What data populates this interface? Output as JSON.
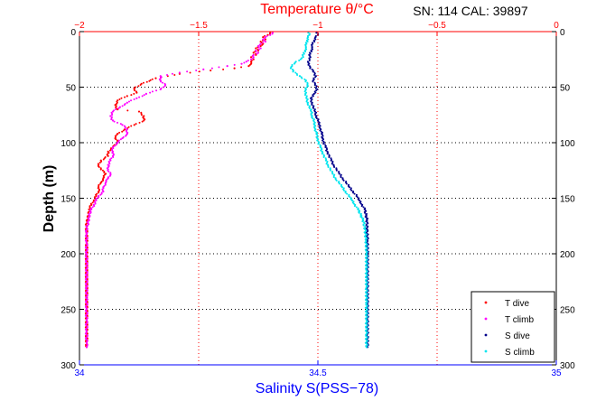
{
  "chart_data": {
    "type": "scatter",
    "title": "SN: 114  CAL: 39897",
    "top_axis": {
      "label": "Temperature θ/°C",
      "range": [
        -2,
        0
      ],
      "ticks": [
        -2,
        -1.5,
        -1,
        -0.5,
        0
      ],
      "tick_labels": [
        "−2",
        "−1.5",
        "−1",
        "−0.5",
        "0"
      ],
      "color": "#ff0000"
    },
    "bottom_axis": {
      "label": "Salinity S(PSS−78)",
      "range": [
        34,
        35
      ],
      "ticks": [
        34,
        34.5,
        35
      ],
      "tick_labels": [
        "34",
        "34.5",
        "35"
      ],
      "color": "#0000ff"
    },
    "y_axis": {
      "label": "Depth (m)",
      "range": [
        0,
        300
      ],
      "reversed": true,
      "ticks": [
        0,
        50,
        100,
        150,
        200,
        250,
        300
      ],
      "tick_labels": [
        "0",
        "50",
        "100",
        "150",
        "200",
        "250",
        "300"
      ]
    },
    "grid": {
      "vertical_on_top_axis_ticks": true,
      "horizontal": true,
      "style": "dotted"
    },
    "legend": {
      "placement": "bottom-right"
    },
    "series": [
      {
        "name": "T dive",
        "axis": "temperature",
        "color": "#ff0000",
        "marker": ".",
        "points": [
          [
            -1.2,
            1
          ],
          [
            -1.21,
            3
          ],
          [
            -1.23,
            5
          ],
          [
            -1.22,
            7
          ],
          [
            -1.24,
            9
          ],
          [
            -1.23,
            11
          ],
          [
            -1.24,
            13
          ],
          [
            -1.26,
            15
          ],
          [
            -1.25,
            17
          ],
          [
            -1.27,
            19
          ],
          [
            -1.26,
            21
          ],
          [
            -1.28,
            23
          ],
          [
            -1.27,
            25
          ],
          [
            -1.28,
            27
          ],
          [
            -1.28,
            29
          ],
          [
            -1.29,
            31
          ],
          [
            -1.35,
            33
          ],
          [
            -1.45,
            35
          ],
          [
            -1.58,
            38
          ],
          [
            -1.68,
            42
          ],
          [
            -1.74,
            47
          ],
          [
            -1.77,
            51
          ],
          [
            -1.76,
            55
          ],
          [
            -1.8,
            58
          ],
          [
            -1.84,
            62
          ],
          [
            -1.85,
            66
          ],
          [
            -1.84,
            70
          ],
          [
            -1.75,
            72
          ],
          [
            -1.73,
            76
          ],
          [
            -1.73,
            80
          ],
          [
            -1.77,
            84
          ],
          [
            -1.81,
            88
          ],
          [
            -1.84,
            92
          ],
          [
            -1.85,
            96
          ],
          [
            -1.84,
            100
          ],
          [
            -1.86,
            104
          ],
          [
            -1.88,
            108
          ],
          [
            -1.88,
            112
          ],
          [
            -1.91,
            116
          ],
          [
            -1.92,
            120
          ],
          [
            -1.91,
            124
          ],
          [
            -1.89,
            128
          ],
          [
            -1.9,
            132
          ],
          [
            -1.91,
            136
          ],
          [
            -1.92,
            140
          ],
          [
            -1.92,
            144
          ],
          [
            -1.93,
            148
          ],
          [
            -1.94,
            152
          ],
          [
            -1.95,
            156
          ],
          [
            -1.96,
            160
          ],
          [
            -1.96,
            165
          ],
          [
            -1.97,
            170
          ],
          [
            -1.97,
            176
          ],
          [
            -1.97,
            182
          ],
          [
            -1.97,
            190
          ],
          [
            -1.97,
            200
          ],
          [
            -1.97,
            210
          ],
          [
            -1.97,
            220
          ],
          [
            -1.97,
            230
          ],
          [
            -1.97,
            240
          ],
          [
            -1.97,
            250
          ],
          [
            -1.97,
            260
          ],
          [
            -1.97,
            270
          ],
          [
            -1.97,
            280
          ],
          [
            -1.97,
            284
          ]
        ]
      },
      {
        "name": "T climb",
        "axis": "temperature",
        "color": "#ff00ff",
        "marker": ".",
        "points": [
          [
            -1.19,
            1
          ],
          [
            -1.2,
            3
          ],
          [
            -1.22,
            5
          ],
          [
            -1.23,
            7
          ],
          [
            -1.22,
            9
          ],
          [
            -1.24,
            11
          ],
          [
            -1.25,
            13
          ],
          [
            -1.24,
            15
          ],
          [
            -1.26,
            17
          ],
          [
            -1.25,
            19
          ],
          [
            -1.27,
            21
          ],
          [
            -1.27,
            23
          ],
          [
            -1.28,
            25
          ],
          [
            -1.3,
            27
          ],
          [
            -1.32,
            29
          ],
          [
            -1.38,
            31
          ],
          [
            -1.48,
            34
          ],
          [
            -1.58,
            37
          ],
          [
            -1.66,
            40
          ],
          [
            -1.66,
            44
          ],
          [
            -1.64,
            48
          ],
          [
            -1.66,
            52
          ],
          [
            -1.72,
            56
          ],
          [
            -1.76,
            60
          ],
          [
            -1.8,
            64
          ],
          [
            -1.83,
            68
          ],
          [
            -1.86,
            72
          ],
          [
            -1.87,
            76
          ],
          [
            -1.86,
            80
          ],
          [
            -1.82,
            84
          ],
          [
            -1.8,
            88
          ],
          [
            -1.8,
            92
          ],
          [
            -1.82,
            96
          ],
          [
            -1.84,
            100
          ],
          [
            -1.86,
            104
          ],
          [
            -1.86,
            108
          ],
          [
            -1.86,
            112
          ],
          [
            -1.87,
            116
          ],
          [
            -1.88,
            120
          ],
          [
            -1.88,
            124
          ],
          [
            -1.87,
            128
          ],
          [
            -1.88,
            132
          ],
          [
            -1.89,
            136
          ],
          [
            -1.9,
            140
          ],
          [
            -1.9,
            144
          ],
          [
            -1.92,
            148
          ],
          [
            -1.93,
            152
          ],
          [
            -1.94,
            156
          ],
          [
            -1.95,
            160
          ],
          [
            -1.96,
            165
          ],
          [
            -1.96,
            170
          ],
          [
            -1.97,
            176
          ],
          [
            -1.97,
            182
          ],
          [
            -1.97,
            190
          ],
          [
            -1.97,
            200
          ],
          [
            -1.97,
            210
          ],
          [
            -1.97,
            220
          ],
          [
            -1.97,
            230
          ],
          [
            -1.97,
            240
          ],
          [
            -1.97,
            250
          ],
          [
            -1.97,
            260
          ],
          [
            -1.97,
            270
          ],
          [
            -1.97,
            280
          ],
          [
            -1.97,
            284
          ]
        ]
      },
      {
        "name": "S dive",
        "axis": "salinity",
        "color": "#00008b",
        "marker": ".",
        "points": [
          [
            34.497,
            1
          ],
          [
            34.5,
            3
          ],
          [
            34.495,
            5
          ],
          [
            34.492,
            8
          ],
          [
            34.489,
            11
          ],
          [
            34.488,
            14
          ],
          [
            34.486,
            17
          ],
          [
            34.484,
            20
          ],
          [
            34.482,
            24
          ],
          [
            34.48,
            28
          ],
          [
            34.484,
            32
          ],
          [
            34.49,
            36
          ],
          [
            34.496,
            40
          ],
          [
            34.49,
            44
          ],
          [
            34.494,
            48
          ],
          [
            34.499,
            52
          ],
          [
            34.492,
            56
          ],
          [
            34.485,
            60
          ],
          [
            34.488,
            64
          ],
          [
            34.49,
            68
          ],
          [
            34.494,
            72
          ],
          [
            34.497,
            76
          ],
          [
            34.5,
            80
          ],
          [
            34.503,
            84
          ],
          [
            34.506,
            88
          ],
          [
            34.508,
            92
          ],
          [
            34.51,
            96
          ],
          [
            34.513,
            100
          ],
          [
            34.516,
            104
          ],
          [
            34.52,
            108
          ],
          [
            34.524,
            112
          ],
          [
            34.528,
            116
          ],
          [
            34.533,
            120
          ],
          [
            34.539,
            124
          ],
          [
            34.545,
            128
          ],
          [
            34.552,
            132
          ],
          [
            34.559,
            136
          ],
          [
            34.566,
            140
          ],
          [
            34.574,
            144
          ],
          [
            34.581,
            148
          ],
          [
            34.587,
            152
          ],
          [
            34.593,
            156
          ],
          [
            34.598,
            160
          ],
          [
            34.601,
            165
          ],
          [
            34.603,
            170
          ],
          [
            34.603,
            178
          ],
          [
            34.604,
            188
          ],
          [
            34.604,
            200
          ],
          [
            34.604,
            215
          ],
          [
            34.604,
            230
          ],
          [
            34.604,
            245
          ],
          [
            34.604,
            260
          ],
          [
            34.604,
            272
          ],
          [
            34.604,
            284
          ]
        ]
      },
      {
        "name": "S climb",
        "axis": "salinity",
        "color": "#00e5ee",
        "marker": ".",
        "points": [
          [
            34.48,
            1
          ],
          [
            34.482,
            3
          ],
          [
            34.479,
            5
          ],
          [
            34.477,
            8
          ],
          [
            34.476,
            11
          ],
          [
            34.475,
            14
          ],
          [
            34.473,
            17
          ],
          [
            34.471,
            20
          ],
          [
            34.466,
            24
          ],
          [
            34.452,
            28
          ],
          [
            34.444,
            32
          ],
          [
            34.448,
            36
          ],
          [
            34.462,
            40
          ],
          [
            34.475,
            44
          ],
          [
            34.478,
            48
          ],
          [
            34.475,
            52
          ],
          [
            34.474,
            56
          ],
          [
            34.476,
            60
          ],
          [
            34.479,
            64
          ],
          [
            34.482,
            68
          ],
          [
            34.486,
            72
          ],
          [
            34.488,
            76
          ],
          [
            34.491,
            80
          ],
          [
            34.493,
            84
          ],
          [
            34.495,
            88
          ],
          [
            34.497,
            92
          ],
          [
            34.499,
            96
          ],
          [
            34.502,
            100
          ],
          [
            34.505,
            104
          ],
          [
            34.509,
            108
          ],
          [
            34.513,
            112
          ],
          [
            34.517,
            116
          ],
          [
            34.521,
            120
          ],
          [
            34.526,
            124
          ],
          [
            34.531,
            128
          ],
          [
            34.537,
            132
          ],
          [
            34.544,
            136
          ],
          [
            34.551,
            140
          ],
          [
            34.558,
            144
          ],
          [
            34.565,
            148
          ],
          [
            34.572,
            152
          ],
          [
            34.578,
            156
          ],
          [
            34.584,
            160
          ],
          [
            34.59,
            165
          ],
          [
            34.595,
            170
          ],
          [
            34.599,
            178
          ],
          [
            34.601,
            188
          ],
          [
            34.602,
            200
          ],
          [
            34.602,
            215
          ],
          [
            34.602,
            230
          ],
          [
            34.602,
            245
          ],
          [
            34.602,
            260
          ],
          [
            34.602,
            272
          ],
          [
            34.602,
            284
          ]
        ]
      }
    ]
  }
}
